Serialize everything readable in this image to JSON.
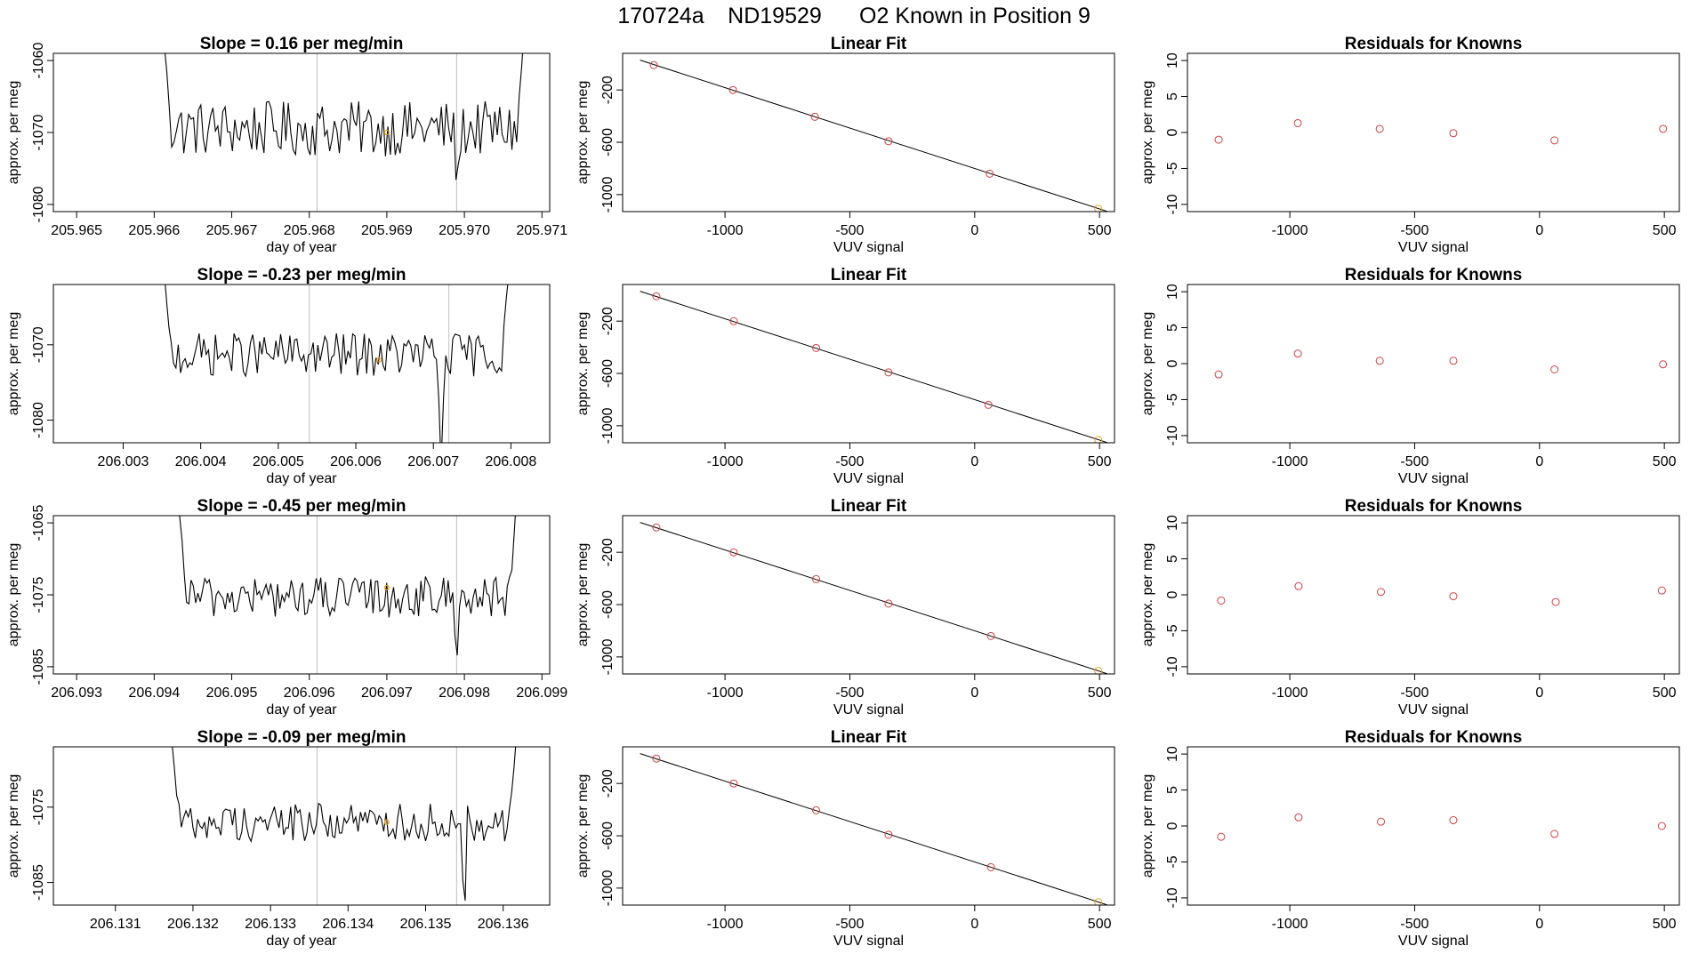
{
  "figure": {
    "title_parts": [
      "170724a",
      "ND19529",
      "O2 Known in Position  9"
    ]
  },
  "colors": {
    "series_line": "#000000",
    "point": "#d04040",
    "highlight": "#e8a020",
    "divider": "#bfbfbf",
    "axis": "#000000"
  },
  "chart_data": [
    {
      "type": "line",
      "row": 0,
      "panel": "time-series",
      "title": "Slope =  0.16  per meg/min",
      "xlabel": "day of year",
      "ylabel": "approx. per meg",
      "xlim": [
        205.9647,
        205.9711
      ],
      "ylim": [
        -1081,
        -1059
      ],
      "xticks": [
        205.965,
        205.966,
        205.967,
        205.968,
        205.969,
        205.97,
        205.971
      ],
      "xtick_labels": [
        "205.965",
        "205.966",
        "205.967",
        "205.968",
        "205.969",
        "205.970",
        "205.971"
      ],
      "yticks": [
        -1080,
        -1070,
        -1060
      ],
      "ytick_labels": [
        "-1080",
        "-1070",
        "-1060"
      ],
      "vlines": [
        205.9681,
        205.9699
      ],
      "highlight_point": [
        205.969,
        -1070
      ],
      "x_start": 205.9661,
      "x_end": 205.9708,
      "y_start": -1055,
      "y_end": -1052,
      "y_mean": -1069.5,
      "y_noise": 2.4,
      "dips": [
        [
          205.9699,
          -1078
        ]
      ]
    },
    {
      "type": "scatter",
      "row": 0,
      "panel": "linear-fit",
      "title": "Linear Fit",
      "xlabel": "VUV signal",
      "ylabel": "approx. per meg",
      "xlim": [
        -1410,
        560
      ],
      "ylim": [
        -1130,
        80
      ],
      "xticks": [
        -1000,
        -500,
        0,
        500
      ],
      "xtick_labels": [
        "-1000",
        "-500",
        "0",
        "500"
      ],
      "yticks": [
        -1000,
        -600,
        -200
      ],
      "ytick_labels": [
        "-1000",
        "-600",
        "-200"
      ],
      "x": [
        -1285,
        -968,
        -640,
        -345,
        60,
        495
      ],
      "y": [
        -10,
        -200,
        -405,
        -592,
        -840,
        -1108
      ],
      "fit_line": [
        [
          -1340,
          28
        ],
        [
          530,
          -1128
        ]
      ]
    },
    {
      "type": "scatter",
      "row": 0,
      "panel": "residuals",
      "title": "Residuals for Knowns",
      "xlabel": "VUV signal",
      "ylabel": "approx. per meg",
      "xlim": [
        -1410,
        560
      ],
      "ylim": [
        -11,
        11
      ],
      "xticks": [
        -1000,
        -500,
        0,
        500
      ],
      "xtick_labels": [
        "-1000",
        "-500",
        "0",
        "500"
      ],
      "yticks": [
        -10,
        -5,
        0,
        5,
        10
      ],
      "ytick_labels": [
        "-10",
        "-5",
        "0",
        "5",
        "10"
      ],
      "x": [
        -1285,
        -968,
        -640,
        -345,
        60,
        495
      ],
      "y": [
        -1.0,
        1.3,
        0.5,
        -0.1,
        -1.1,
        0.5
      ]
    },
    {
      "type": "line",
      "row": 1,
      "panel": "time-series",
      "title": "Slope =  -0.23  per meg/min",
      "xlabel": "day of year",
      "ylabel": "approx. per meg",
      "xlim": [
        206.0021,
        206.0085
      ],
      "ylim": [
        -1083,
        -1062
      ],
      "xticks": [
        206.003,
        206.004,
        206.005,
        206.006,
        206.007,
        206.008
      ],
      "xtick_labels": [
        "206.003",
        "206.004",
        "206.005",
        "206.006",
        "206.007",
        "206.008"
      ],
      "yticks": [
        -1080,
        -1070
      ],
      "ytick_labels": [
        "-1080",
        "-1070"
      ],
      "vlines": [
        206.0054,
        206.0072
      ],
      "highlight_point": [
        206.0063,
        -1072
      ],
      "x_start": 206.0035,
      "x_end": 206.008,
      "y_start": -1058,
      "y_end": -1058,
      "y_mean": -1071.3,
      "y_noise": 1.8,
      "dips": [
        [
          206.0071,
          -1086
        ]
      ]
    },
    {
      "type": "scatter",
      "row": 1,
      "panel": "linear-fit",
      "title": "Linear Fit",
      "xlabel": "VUV signal",
      "ylabel": "approx. per meg",
      "xlim": [
        -1410,
        560
      ],
      "ylim": [
        -1130,
        80
      ],
      "xticks": [
        -1000,
        -500,
        0,
        500
      ],
      "xtick_labels": [
        "-1000",
        "-500",
        "0",
        "500"
      ],
      "yticks": [
        -1000,
        -600,
        -200
      ],
      "ytick_labels": [
        "-1000",
        "-600",
        "-200"
      ],
      "x": [
        -1275,
        -965,
        -635,
        -345,
        55,
        495
      ],
      "y": [
        -10,
        -200,
        -405,
        -592,
        -840,
        -1108
      ],
      "fit_line": [
        [
          -1340,
          28
        ],
        [
          530,
          -1128
        ]
      ]
    },
    {
      "type": "scatter",
      "row": 1,
      "panel": "residuals",
      "title": "Residuals for Knowns",
      "xlabel": "VUV signal",
      "ylabel": "approx. per meg",
      "xlim": [
        -1410,
        560
      ],
      "ylim": [
        -11,
        11
      ],
      "xticks": [
        -1000,
        -500,
        0,
        500
      ],
      "xtick_labels": [
        "-1000",
        "-500",
        "0",
        "500"
      ],
      "yticks": [
        -10,
        -5,
        0,
        5,
        10
      ],
      "ytick_labels": [
        "-10",
        "-5",
        "0",
        "5",
        "10"
      ],
      "x": [
        -1285,
        -968,
        -640,
        -345,
        60,
        495
      ],
      "y": [
        -1.5,
        1.4,
        0.4,
        0.4,
        -0.8,
        -0.1
      ]
    },
    {
      "type": "line",
      "row": 2,
      "panel": "time-series",
      "title": "Slope =  -0.45  per meg/min",
      "xlabel": "day of year",
      "ylabel": "approx. per meg",
      "xlim": [
        206.0927,
        206.0991
      ],
      "ylim": [
        -1086,
        -1064
      ],
      "xticks": [
        206.093,
        206.094,
        206.095,
        206.096,
        206.097,
        206.098,
        206.099
      ],
      "xtick_labels": [
        "206.093",
        "206.094",
        "206.095",
        "206.096",
        "206.097",
        "206.098",
        "206.099"
      ],
      "yticks": [
        -1085,
        -1075,
        -1065
      ],
      "ytick_labels": [
        "-1085",
        "-1075",
        "-1065"
      ],
      "vlines": [
        206.0961,
        206.0979
      ],
      "highlight_point": [
        206.097,
        -1074
      ],
      "x_start": 206.0943,
      "x_end": 206.0987,
      "y_start": -1060,
      "y_end": -1058,
      "y_mean": -1075.3,
      "y_noise": 1.8,
      "dips": [
        [
          206.0979,
          -1085
        ]
      ]
    },
    {
      "type": "scatter",
      "row": 2,
      "panel": "linear-fit",
      "title": "Linear Fit",
      "xlabel": "VUV signal",
      "ylabel": "approx. per meg",
      "xlim": [
        -1410,
        560
      ],
      "ylim": [
        -1130,
        80
      ],
      "xticks": [
        -1000,
        -500,
        0,
        500
      ],
      "xtick_labels": [
        "-1000",
        "-500",
        "0",
        "500"
      ],
      "yticks": [
        -1000,
        -600,
        -200
      ],
      "ytick_labels": [
        "-1000",
        -600,
        "-200"
      ],
      "x": [
        -1275,
        -965,
        -635,
        -345,
        65,
        495
      ],
      "y": [
        -10,
        -200,
        -405,
        -592,
        -840,
        -1108
      ],
      "fit_line": [
        [
          -1340,
          28
        ],
        [
          530,
          -1128
        ]
      ]
    },
    {
      "type": "scatter",
      "row": 2,
      "panel": "residuals",
      "title": "Residuals for Knowns",
      "xlabel": "VUV signal",
      "ylabel": "approx. per meg",
      "xlim": [
        -1410,
        560
      ],
      "ylim": [
        -11,
        11
      ],
      "xticks": [
        -1000,
        -500,
        0,
        500
      ],
      "xtick_labels": [
        "-1000",
        "-500",
        "0",
        "500"
      ],
      "yticks": [
        -10,
        -5,
        0,
        5,
        10
      ],
      "ytick_labels": [
        "-10",
        "-5",
        "0",
        "5",
        "10"
      ],
      "x": [
        -1275,
        -965,
        -635,
        -345,
        65,
        490
      ],
      "y": [
        -0.8,
        1.2,
        0.4,
        -0.2,
        -1.0,
        0.6
      ]
    },
    {
      "type": "line",
      "row": 3,
      "panel": "time-series",
      "title": "Slope =  -0.09  per meg/min",
      "xlabel": "day of year",
      "ylabel": "approx. per meg",
      "xlim": [
        206.1302,
        206.1366
      ],
      "ylim": [
        -1088,
        -1067
      ],
      "xticks": [
        206.131,
        206.132,
        206.133,
        206.134,
        206.135,
        206.136
      ],
      "xtick_labels": [
        "206.131",
        "206.132",
        "206.133",
        "206.134",
        "206.135",
        "206.136"
      ],
      "yticks": [
        -1085,
        -1075
      ],
      "ytick_labels": [
        "-1085",
        "-1075"
      ],
      "vlines": [
        206.1336,
        206.1354
      ],
      "highlight_point": [
        206.1345,
        -1077
      ],
      "x_start": 206.1317,
      "x_end": 206.1362,
      "y_start": -1063,
      "y_end": -1061,
      "y_mean": -1077.0,
      "y_noise": 1.6,
      "dips": [
        [
          206.1355,
          -1090
        ]
      ]
    },
    {
      "type": "scatter",
      "row": 3,
      "panel": "linear-fit",
      "title": "Linear Fit",
      "xlabel": "VUV signal",
      "ylabel": "approx. per meg",
      "xlim": [
        -1410,
        560
      ],
      "ylim": [
        -1130,
        80
      ],
      "xticks": [
        -1000,
        -500,
        0,
        500
      ],
      "xtick_labels": [
        "-1000",
        "-500",
        "0",
        "500"
      ],
      "yticks": [
        -1000,
        -600,
        -200
      ],
      "ytick_labels": [
        "-1000",
        "-600",
        "-200"
      ],
      "x": [
        -1275,
        -965,
        -635,
        -345,
        65,
        495
      ],
      "y": [
        -10,
        -200,
        -405,
        -592,
        -840,
        -1108
      ],
      "fit_line": [
        [
          -1340,
          28
        ],
        [
          530,
          -1128
        ]
      ]
    },
    {
      "type": "scatter",
      "row": 3,
      "panel": "residuals",
      "title": "Residuals for Knowns",
      "xlabel": "VUV signal",
      "ylabel": "approx. per meg",
      "xlim": [
        -1410,
        560
      ],
      "ylim": [
        -11,
        11
      ],
      "xticks": [
        -1000,
        -500,
        0,
        500
      ],
      "xtick_labels": [
        "-1000",
        "-500",
        "0",
        "500"
      ],
      "yticks": [
        -10,
        -5,
        0,
        5,
        10
      ],
      "ytick_labels": [
        "-10",
        "-5",
        "0",
        "5",
        "10"
      ],
      "x": [
        -1275,
        -965,
        -635,
        -345,
        60,
        490
      ],
      "y": [
        -1.5,
        1.2,
        0.6,
        0.8,
        -1.1,
        0.0
      ]
    }
  ]
}
